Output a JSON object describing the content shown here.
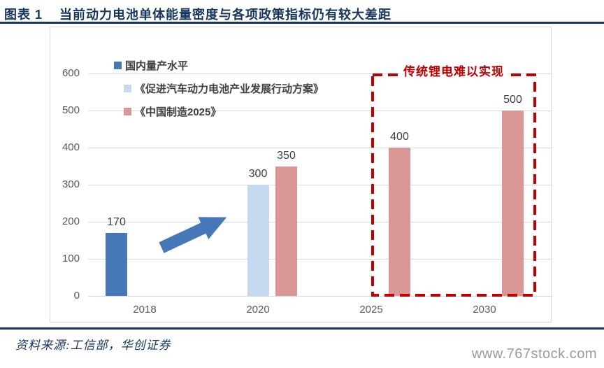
{
  "header": {
    "figure_label": "图表 1",
    "title": "当前动力电池单体能量密度与各项政策指标仍有较大差距"
  },
  "chart_data": {
    "type": "bar",
    "categories": [
      "2018",
      "2020",
      "2025",
      "2030"
    ],
    "series": [
      {
        "name": "国内量产水平",
        "color": "#4678b8",
        "values": [
          170,
          null,
          null,
          null
        ]
      },
      {
        "name": "《促进汽车动力电池产业发展行动方案》",
        "color": "#c6d9f1",
        "values": [
          null,
          300,
          null,
          null
        ]
      },
      {
        "name": "《中国制造2025》",
        "color": "#d99694",
        "values": [
          null,
          350,
          400,
          500
        ]
      }
    ],
    "ylim": [
      0,
      600
    ],
    "ytick_step": 100,
    "grid": true,
    "legend_position": "top-left",
    "annotation": {
      "text": "传统锂电难以实现",
      "color": "#c00000",
      "box_categories": [
        "2025",
        "2030"
      ]
    },
    "arrow_color": "#4678b8"
  },
  "footer": {
    "source": "资料来源:工信部，华创证券",
    "website": "www.767stock.com"
  },
  "colors": {
    "title_navy": "#17365d",
    "axis_text": "#595959",
    "value_text": "#404040",
    "gridline": "#d9d9d9",
    "annotation_red": "#c00000"
  }
}
